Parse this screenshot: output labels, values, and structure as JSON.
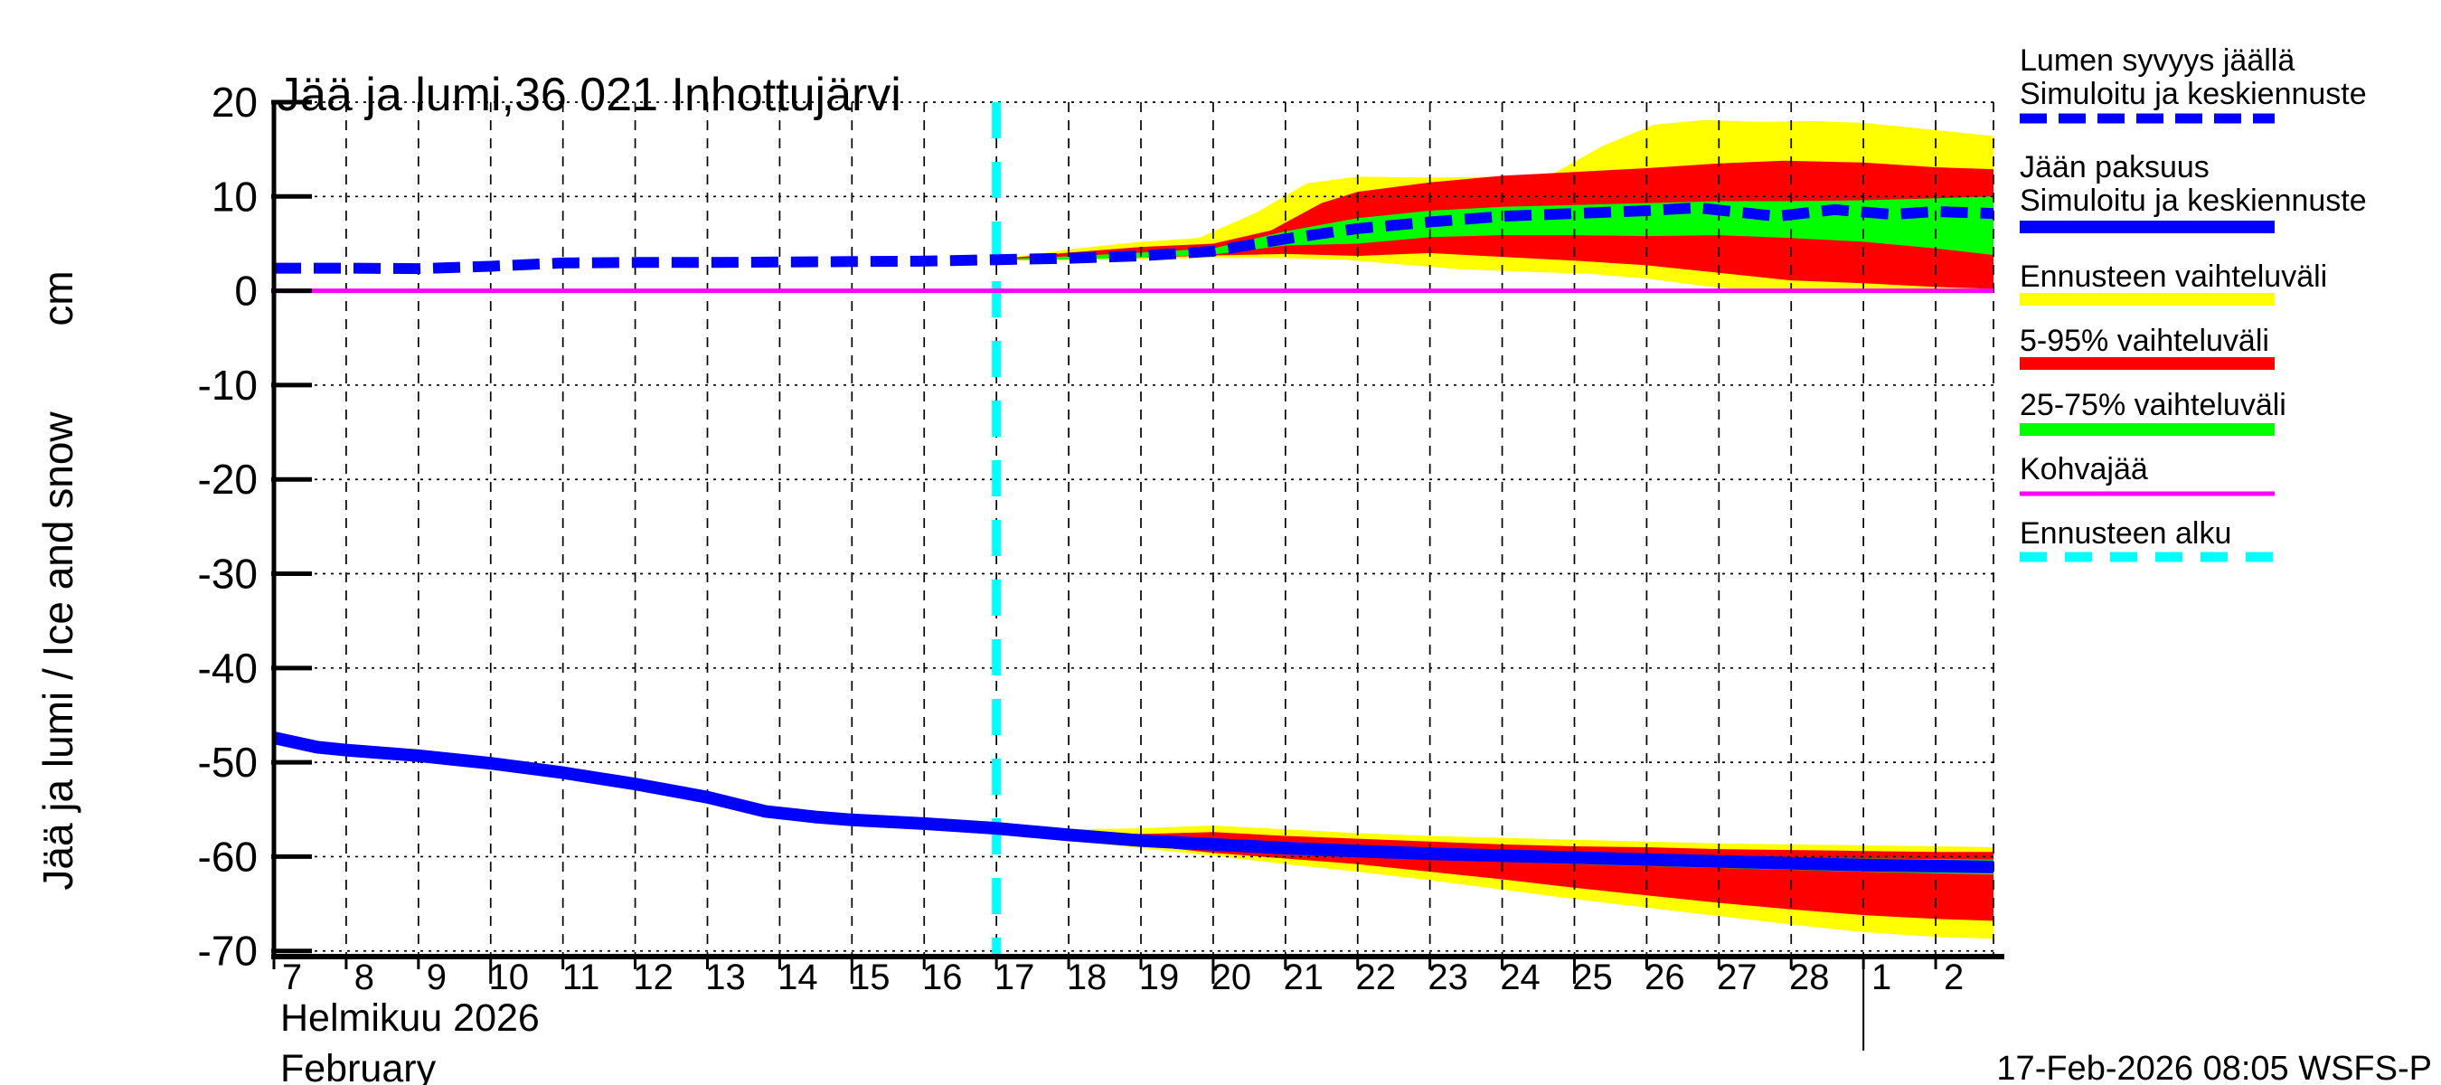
{
  "title": "Jää ja lumi,36 021 Inhottujärvi",
  "y_axis": {
    "label_main": "Jää ja lumi / Ice and snow",
    "label_unit": "cm"
  },
  "x_axis": {
    "month_label_fi": "Helmikuu 2026",
    "month_label_en": "February"
  },
  "footer": {
    "timestamp": "17-Feb-2026 08:05 WSFS-P"
  },
  "colors": {
    "median_blue": "#0000FF",
    "range_yellow": "#FFFF00",
    "p5_95_red": "#FF0000",
    "p25_75_green": "#00FF00",
    "kohvajaa_magenta": "#FF00FF",
    "forecast_start_cyan": "#00FFFF",
    "axis_black": "#000000",
    "background": "#FFFFFF"
  },
  "legend": [
    {
      "id": "snow-depth",
      "lines": [
        "Lumen syvyys jäällä",
        "Simuloitu ja keskiennuste"
      ],
      "color": "#0000FF",
      "weight": 11,
      "dash": "30 13"
    },
    {
      "id": "ice-thickness",
      "lines": [
        "Jään paksuus",
        "Simuloitu ja keskiennuste"
      ],
      "color": "#0000FF",
      "weight": 14,
      "dash": ""
    },
    {
      "id": "forecast-range",
      "lines": [
        "Ennusteen vaihteluväli"
      ],
      "color": "#FFFF00",
      "weight": 14,
      "dash": ""
    },
    {
      "id": "p5-95",
      "lines": [
        "5-95% vaihteluväli"
      ],
      "color": "#FF0000",
      "weight": 14,
      "dash": ""
    },
    {
      "id": "p25-75",
      "lines": [
        "25-75% vaihteluväli"
      ],
      "color": "#00FF00",
      "weight": 14,
      "dash": ""
    },
    {
      "id": "kohvajaa",
      "lines": [
        "Kohvajää"
      ],
      "color": "#FF00FF",
      "weight": 5,
      "dash": ""
    },
    {
      "id": "forecast-start",
      "lines": [
        "Ennusteen alku"
      ],
      "color": "#00FFFF",
      "weight": 11,
      "dash": "30 20"
    }
  ],
  "chart_data": {
    "type": "line",
    "title": "Jää ja lumi,36 021 Inhottujärvi",
    "ylabel": "Jää ja lumi / Ice and snow (cm)",
    "xlabel": "Helmikuu 2026 / February",
    "x_unit_note": "day of month: 7-28 = February 2026, 29-30 = 1-2 March 2026",
    "x_range": [
      7,
      30.8
    ],
    "ylim": [
      -70,
      20
    ],
    "y_view": [
      20,
      -70.6
    ],
    "grid": true,
    "legend_position": "right",
    "y_ticks": [
      20,
      10,
      0,
      -10,
      -20,
      -30,
      -40,
      -50,
      -60,
      -70
    ],
    "x_ticks": [
      {
        "day": 7,
        "label": "7"
      },
      {
        "day": 8,
        "label": "8"
      },
      {
        "day": 9,
        "label": "9"
      },
      {
        "day": 10,
        "label": "10"
      },
      {
        "day": 11,
        "label": "11"
      },
      {
        "day": 12,
        "label": "12"
      },
      {
        "day": 13,
        "label": "13"
      },
      {
        "day": 14,
        "label": "14"
      },
      {
        "day": 15,
        "label": "15"
      },
      {
        "day": 16,
        "label": "16"
      },
      {
        "day": 17,
        "label": "17"
      },
      {
        "day": 18,
        "label": "18"
      },
      {
        "day": 19,
        "label": "19"
      },
      {
        "day": 20,
        "label": "20"
      },
      {
        "day": 21,
        "label": "21"
      },
      {
        "day": 22,
        "label": "22"
      },
      {
        "day": 23,
        "label": "23"
      },
      {
        "day": 24,
        "label": "24"
      },
      {
        "day": 25,
        "label": "25"
      },
      {
        "day": 26,
        "label": "26"
      },
      {
        "day": 27,
        "label": "27"
      },
      {
        "day": 28,
        "label": "28"
      },
      {
        "day": 29,
        "label": "1"
      },
      {
        "day": 30,
        "label": "2"
      }
    ],
    "x_major_days": [
      10,
      15,
      20,
      25
    ],
    "month_boundary_day": 29,
    "forecast_start_day": 17,
    "kohvajaa_level_cm": 0,
    "series": [
      {
        "name": "snow-depth-median",
        "label": "Lumen syvyys jäällä — Simuloitu ja keskiennuste",
        "color": "#0000FF",
        "style": "dashed",
        "width": 12,
        "points": [
          [
            7,
            2.4
          ],
          [
            8,
            2.4
          ],
          [
            9,
            2.35
          ],
          [
            10,
            2.6
          ],
          [
            11,
            2.95
          ],
          [
            12,
            3.0
          ],
          [
            13,
            3.0
          ],
          [
            14,
            3.05
          ],
          [
            15,
            3.1
          ],
          [
            16,
            3.15
          ],
          [
            17,
            3.3
          ],
          [
            18,
            3.45
          ],
          [
            19,
            3.7
          ],
          [
            20,
            4.2
          ],
          [
            21,
            5.5
          ],
          [
            22,
            6.6
          ],
          [
            23,
            7.3
          ],
          [
            24,
            7.9
          ],
          [
            25,
            8.2
          ],
          [
            26,
            8.5
          ],
          [
            26.7,
            8.8
          ],
          [
            27.8,
            7.9
          ],
          [
            28.6,
            8.6
          ],
          [
            29.4,
            8.1
          ],
          [
            30,
            8.4
          ],
          [
            30.8,
            8.2
          ]
        ]
      },
      {
        "name": "ice-thickness-median",
        "label": "Jään paksuus — Simuloitu ja keskiennuste",
        "color": "#0000FF",
        "style": "solid",
        "width": 14,
        "points": [
          [
            7,
            -47.4
          ],
          [
            7.6,
            -48.4
          ],
          [
            8,
            -48.7
          ],
          [
            9,
            -49.3
          ],
          [
            10,
            -50.1
          ],
          [
            11,
            -51.1
          ],
          [
            12,
            -52.3
          ],
          [
            13,
            -53.7
          ],
          [
            13.8,
            -55.2
          ],
          [
            14.5,
            -55.8
          ],
          [
            15,
            -56.1
          ],
          [
            16,
            -56.5
          ],
          [
            17,
            -57.0
          ],
          [
            18,
            -57.7
          ],
          [
            19,
            -58.3
          ],
          [
            20,
            -58.7
          ],
          [
            21,
            -59.1
          ],
          [
            22,
            -59.4
          ],
          [
            23,
            -59.7
          ],
          [
            24,
            -59.9
          ],
          [
            25,
            -60.1
          ],
          [
            26,
            -60.3
          ],
          [
            27,
            -60.5
          ],
          [
            28,
            -60.7
          ],
          [
            29,
            -60.9
          ],
          [
            30,
            -61.0
          ],
          [
            30.8,
            -61.1
          ]
        ]
      }
    ],
    "bands": [
      {
        "name": "snow-forecast-range",
        "label": "Ennusteen vaihteluväli (lumi)",
        "color": "#FFFF00",
        "hi": [
          [
            17,
            3.4
          ],
          [
            17.6,
            3.9
          ],
          [
            18,
            4.4
          ],
          [
            19,
            5.2
          ],
          [
            19.8,
            5.6
          ],
          [
            20.6,
            8.3
          ],
          [
            21.3,
            11.4
          ],
          [
            22,
            12.1
          ],
          [
            23,
            12.0
          ],
          [
            24,
            12.1
          ],
          [
            24.7,
            12.4
          ],
          [
            25.4,
            15.4
          ],
          [
            26.1,
            17.6
          ],
          [
            26.8,
            18.1
          ],
          [
            27.6,
            17.9
          ],
          [
            28.3,
            18.0
          ],
          [
            29,
            17.8
          ],
          [
            29.8,
            17.2
          ],
          [
            30.8,
            16.4
          ]
        ],
        "lo": [
          [
            17,
            3.2
          ],
          [
            18,
            3.25
          ],
          [
            19,
            3.35
          ],
          [
            20,
            3.5
          ],
          [
            21,
            3.45
          ],
          [
            21.8,
            3.3
          ],
          [
            22.6,
            2.8
          ],
          [
            23.4,
            2.3
          ],
          [
            24.4,
            2.0
          ],
          [
            25.2,
            1.8
          ],
          [
            26,
            1.3
          ],
          [
            26.8,
            0.5
          ],
          [
            27.4,
            0.1
          ],
          [
            28,
            0.0
          ],
          [
            29,
            0.0
          ],
          [
            30,
            0.05
          ],
          [
            30.8,
            0.2
          ]
        ]
      },
      {
        "name": "ice-forecast-range",
        "label": "Ennusteen vaihteluväli (jää)",
        "color": "#FFFF00",
        "hi": [
          [
            17,
            -56.9
          ],
          [
            18,
            -57.1
          ],
          [
            19,
            -57.0
          ],
          [
            20,
            -56.7
          ],
          [
            21,
            -57.1
          ],
          [
            22,
            -57.5
          ],
          [
            23,
            -57.8
          ],
          [
            24,
            -58.0
          ],
          [
            25,
            -58.2
          ],
          [
            26,
            -58.4
          ],
          [
            27,
            -58.6
          ],
          [
            28,
            -58.7
          ],
          [
            29,
            -58.8
          ],
          [
            30,
            -58.9
          ],
          [
            30.8,
            -59.0
          ]
        ],
        "lo": [
          [
            17,
            -57.1
          ],
          [
            18,
            -58.3
          ],
          [
            19,
            -59.1
          ],
          [
            20,
            -59.9
          ],
          [
            21,
            -60.8
          ],
          [
            22,
            -61.6
          ],
          [
            23,
            -62.5
          ],
          [
            24,
            -63.5
          ],
          [
            25,
            -64.5
          ],
          [
            26,
            -65.4
          ],
          [
            27,
            -66.3
          ],
          [
            28,
            -67.2
          ],
          [
            29,
            -68.0
          ],
          [
            30,
            -68.5
          ],
          [
            30.8,
            -68.7
          ]
        ]
      },
      {
        "name": "snow-5-95",
        "label": "5-95% vaihteluväli (lumi)",
        "color": "#FF0000",
        "hi": [
          [
            17,
            3.35
          ],
          [
            18,
            4.05
          ],
          [
            19,
            4.65
          ],
          [
            20,
            5.0
          ],
          [
            20.8,
            6.4
          ],
          [
            21.5,
            9.3
          ],
          [
            22,
            10.5
          ],
          [
            23,
            11.5
          ],
          [
            24,
            12.2
          ],
          [
            25,
            12.6
          ],
          [
            26,
            13.0
          ],
          [
            27,
            13.5
          ],
          [
            27.9,
            13.8
          ],
          [
            29,
            13.6
          ],
          [
            30,
            13.1
          ],
          [
            30.8,
            12.9
          ]
        ],
        "lo": [
          [
            17,
            3.25
          ],
          [
            18,
            3.35
          ],
          [
            19,
            3.5
          ],
          [
            20,
            3.75
          ],
          [
            21,
            3.9
          ],
          [
            22,
            3.7
          ],
          [
            23,
            4.0
          ],
          [
            24,
            3.6
          ],
          [
            25,
            3.2
          ],
          [
            26,
            2.7
          ],
          [
            27,
            1.9
          ],
          [
            28,
            1.1
          ],
          [
            29,
            0.8
          ],
          [
            30,
            0.4
          ],
          [
            30.8,
            0.2
          ]
        ]
      },
      {
        "name": "ice-5-95",
        "label": "5-95% vaihteluväli (jää)",
        "color": "#FF0000",
        "hi": [
          [
            17,
            -57.0
          ],
          [
            18,
            -57.5
          ],
          [
            19,
            -57.6
          ],
          [
            20,
            -57.4
          ],
          [
            21,
            -57.8
          ],
          [
            22,
            -58.1
          ],
          [
            23,
            -58.4
          ],
          [
            24,
            -58.7
          ],
          [
            25,
            -58.9
          ],
          [
            26,
            -59.0
          ],
          [
            27,
            -59.2
          ],
          [
            28,
            -59.3
          ],
          [
            29,
            -59.4
          ],
          [
            30,
            -59.5
          ],
          [
            30.8,
            -59.5
          ]
        ],
        "lo": [
          [
            17,
            -57.1
          ],
          [
            18,
            -58.1
          ],
          [
            19,
            -58.8
          ],
          [
            20,
            -59.6
          ],
          [
            21,
            -60.2
          ],
          [
            22,
            -60.8
          ],
          [
            23,
            -61.6
          ],
          [
            24,
            -62.4
          ],
          [
            25,
            -63.3
          ],
          [
            26,
            -64.1
          ],
          [
            27,
            -64.9
          ],
          [
            28,
            -65.6
          ],
          [
            29,
            -66.2
          ],
          [
            30,
            -66.6
          ],
          [
            30.8,
            -66.8
          ]
        ]
      },
      {
        "name": "snow-25-75",
        "label": "25-75% vaihteluväli (lumi)",
        "color": "#00FF00",
        "hi": [
          [
            17,
            3.33
          ],
          [
            18,
            3.65
          ],
          [
            19,
            4.05
          ],
          [
            20,
            4.5
          ],
          [
            21,
            6.3
          ],
          [
            22,
            7.7
          ],
          [
            23,
            8.5
          ],
          [
            24,
            8.9
          ],
          [
            25,
            9.1
          ],
          [
            26,
            9.3
          ],
          [
            27,
            9.5
          ],
          [
            28,
            9.5
          ],
          [
            29,
            9.6
          ],
          [
            30,
            9.8
          ],
          [
            30.8,
            10.0
          ]
        ],
        "lo": [
          [
            17,
            3.27
          ],
          [
            18,
            3.32
          ],
          [
            19,
            3.5
          ],
          [
            20,
            3.85
          ],
          [
            21,
            4.8
          ],
          [
            22,
            5.0
          ],
          [
            23,
            5.7
          ],
          [
            24,
            5.9
          ],
          [
            25,
            5.9
          ],
          [
            26,
            5.8
          ],
          [
            27,
            5.9
          ],
          [
            28,
            5.6
          ],
          [
            29,
            5.2
          ],
          [
            30,
            4.5
          ],
          [
            30.8,
            3.8
          ]
        ]
      },
      {
        "name": "ice-25-75",
        "label": "25-75% vaihteluväli (jää)",
        "color": "#00FF00",
        "hi": [
          [
            17,
            -57.0
          ],
          [
            19,
            -57.9
          ],
          [
            21,
            -58.6
          ],
          [
            23,
            -59.1
          ],
          [
            25,
            -59.5
          ],
          [
            27,
            -59.9
          ],
          [
            29,
            -60.2
          ],
          [
            30.8,
            -60.3
          ]
        ],
        "lo": [
          [
            17,
            -57.1
          ],
          [
            19,
            -58.7
          ],
          [
            21,
            -59.7
          ],
          [
            23,
            -60.3
          ],
          [
            25,
            -60.8
          ],
          [
            27,
            -61.2
          ],
          [
            29,
            -61.6
          ],
          [
            30.8,
            -61.9
          ]
        ]
      }
    ]
  }
}
